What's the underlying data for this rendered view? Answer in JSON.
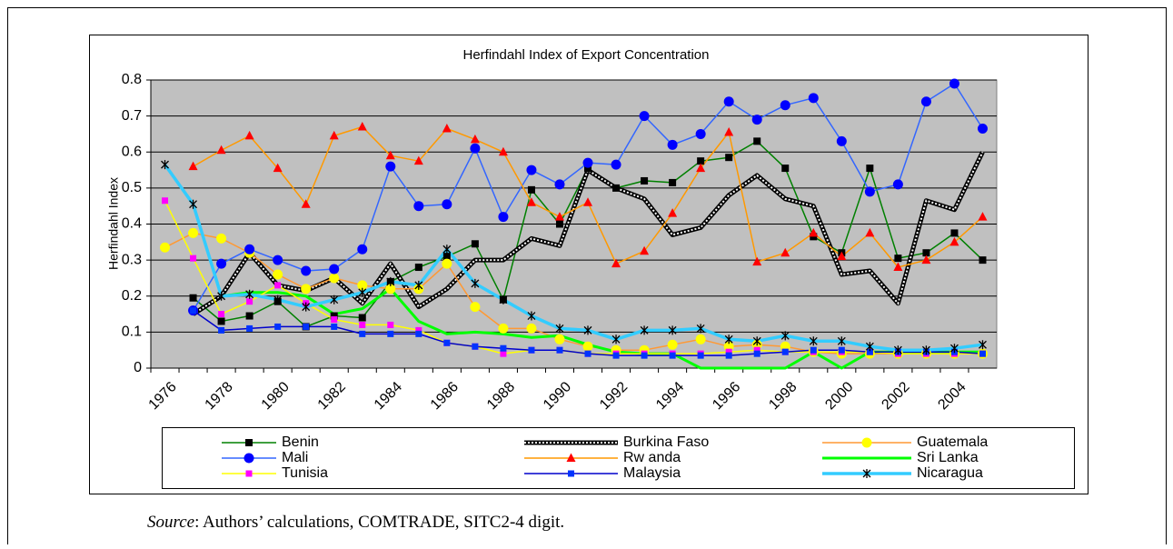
{
  "chart_data": {
    "type": "line",
    "title": "Herfindahl Index of Export Concentration",
    "y_label": "Herfindahl Index",
    "categories": [
      1976,
      null,
      1978,
      null,
      1980,
      null,
      1982,
      null,
      1984,
      null,
      1986,
      null,
      1988,
      null,
      1990,
      null,
      1992,
      null,
      1994,
      null,
      1996,
      null,
      1998,
      null,
      2000,
      null,
      2002,
      null,
      2004,
      null
    ],
    "ylim": [
      0,
      0.8
    ],
    "yticks": [
      0,
      0.1,
      0.2,
      0.3,
      0.4,
      0.5,
      0.6,
      0.7,
      0.8
    ],
    "grid": true,
    "plot_background": "#c0c0c0",
    "legend": "bottom",
    "series": [
      {
        "name": "Benin",
        "color": "#008000",
        "marker": "square",
        "marker_color": "#000000",
        "line_width": 1.5,
        "values": [
          null,
          0.195,
          0.13,
          0.145,
          0.185,
          0.115,
          0.145,
          0.14,
          0.24,
          0.28,
          0.31,
          0.345,
          0.19,
          0.495,
          0.4,
          0.555,
          0.5,
          0.52,
          0.515,
          0.575,
          0.585,
          0.63,
          0.555,
          0.365,
          0.32,
          0.555,
          0.305,
          0.32,
          0.375,
          0.3
        ]
      },
      {
        "name": "Burkina Faso",
        "color": "#000000",
        "marker": "checkered",
        "marker_color": "#ffffff",
        "line_width": 5,
        "values": [
          null,
          0.15,
          0.2,
          0.32,
          0.23,
          0.215,
          0.25,
          0.18,
          0.29,
          0.17,
          0.22,
          0.3,
          0.3,
          0.36,
          0.34,
          0.55,
          0.5,
          0.47,
          0.37,
          0.39,
          0.48,
          0.535,
          0.47,
          0.45,
          0.26,
          0.27,
          0.18,
          0.465,
          0.44,
          0.6
        ]
      },
      {
        "name": "Guatemala",
        "color": "#ff9933",
        "marker": "circle",
        "marker_color": "#ffff00",
        "line_width": 1.5,
        "values": [
          0.335,
          0.375,
          0.36,
          0.32,
          0.26,
          0.22,
          0.25,
          0.23,
          0.22,
          0.22,
          0.29,
          0.17,
          0.11,
          0.11,
          0.08,
          0.06,
          0.05,
          0.05,
          0.065,
          0.08,
          0.06,
          0.065,
          0.06,
          0.045,
          0.04,
          0.04,
          0.04,
          0.04,
          0.04,
          0.04
        ]
      },
      {
        "name": "Mali",
        "color": "#3366ff",
        "marker": "circle",
        "marker_color": "#0000ff",
        "line_width": 1.5,
        "values": [
          null,
          0.16,
          0.29,
          0.33,
          0.3,
          0.27,
          0.275,
          0.33,
          0.56,
          0.45,
          0.455,
          0.61,
          0.42,
          0.55,
          0.51,
          0.57,
          0.565,
          0.7,
          0.62,
          0.65,
          0.74,
          0.69,
          0.73,
          0.75,
          0.63,
          0.49,
          0.51,
          0.74,
          0.79,
          0.665
        ]
      },
      {
        "name": "Rw anda",
        "color": "#ff9900",
        "marker": "triangle",
        "marker_color": "#ff0000",
        "line_width": 1.5,
        "values": [
          null,
          0.56,
          0.605,
          0.645,
          0.555,
          0.455,
          0.645,
          0.67,
          0.59,
          0.575,
          0.665,
          0.635,
          0.6,
          0.46,
          0.42,
          0.46,
          0.29,
          0.325,
          0.43,
          0.555,
          0.655,
          0.295,
          0.32,
          0.375,
          0.31,
          0.375,
          0.28,
          0.3,
          0.35,
          0.42
        ]
      },
      {
        "name": "Sri Lanka",
        "color": "#00ff00",
        "marker": "none",
        "marker_color": "#00ff00",
        "line_width": 3,
        "values": [
          null,
          null,
          0.2,
          0.21,
          0.21,
          0.2,
          0.15,
          0.165,
          0.22,
          0.13,
          0.095,
          0.1,
          0.095,
          0.085,
          0.09,
          0.065,
          0.045,
          0.04,
          0.04,
          0,
          0,
          0,
          0,
          0.045,
          0,
          0.045,
          0.045,
          0.045,
          0.045,
          0.045
        ]
      },
      {
        "name": "Tunisia",
        "color": "#ffff00",
        "marker": "square",
        "marker_color": "#ff00ff",
        "line_width": 1.5,
        "values": [
          0.465,
          0.305,
          0.15,
          0.185,
          0.23,
          0.18,
          0.135,
          0.12,
          0.12,
          0.105,
          0.07,
          0.06,
          0.04,
          0.05,
          0.05,
          0.04,
          0.04,
          0.04,
          0.04,
          0.04,
          0.045,
          0.05,
          0.045,
          0.045,
          0.045,
          0.045,
          0.04,
          0.04,
          0.04,
          0.04
        ]
      },
      {
        "name": "Malaysia",
        "color": "#0000cc",
        "marker": "square",
        "marker_color": "#0033ff",
        "line_width": 1.5,
        "values": [
          null,
          0.16,
          0.105,
          0.11,
          0.115,
          0.115,
          0.115,
          0.095,
          0.095,
          0.095,
          0.07,
          0.06,
          0.055,
          0.05,
          0.05,
          0.04,
          0.035,
          0.035,
          0.035,
          0.035,
          0.035,
          0.04,
          0.045,
          0.05,
          0.05,
          0.045,
          0.045,
          0.045,
          0.045,
          0.04
        ]
      },
      {
        "name": "Nicaragua",
        "color": "#33ccff",
        "marker": "star",
        "marker_color": "#000000",
        "line_width": 3.5,
        "values": [
          0.565,
          0.455,
          0.2,
          0.205,
          0.19,
          0.17,
          0.19,
          0.21,
          0.24,
          0.23,
          0.33,
          0.235,
          0.19,
          0.145,
          0.11,
          0.105,
          0.08,
          0.105,
          0.105,
          0.11,
          0.08,
          0.075,
          0.09,
          0.075,
          0.075,
          0.06,
          0.05,
          0.05,
          0.055,
          0.065
        ]
      }
    ]
  },
  "source": {
    "label": "Source",
    "text": ": Authors’ calculations, COMTRADE, SITC2-4 digit."
  }
}
